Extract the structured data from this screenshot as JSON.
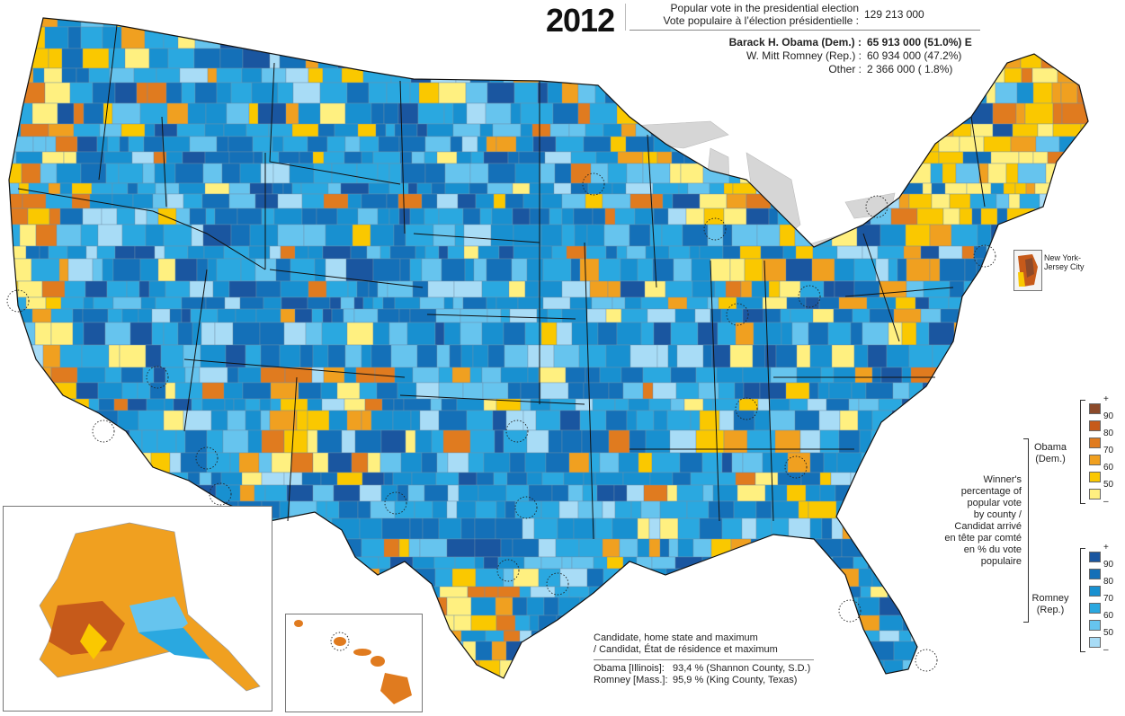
{
  "header": {
    "year": "2012",
    "popular_vote_en": "Popular vote in the presidential election",
    "popular_vote_fr": "Vote populaire à l’élection présidentielle :",
    "total": "129 213 000"
  },
  "candidates": [
    {
      "name": "Barack H. Obama (Dem.) :",
      "value": "65 913 000  (51.0%)  E"
    },
    {
      "name": "W. Mitt Romney (Rep.) :",
      "value": "60 934 000  (47.2%)"
    },
    {
      "name": "Other :",
      "value": "2 366 000  (  1.8%)"
    }
  ],
  "inset_label": "New York-\nJersey City",
  "footer": {
    "title_en": "Candidate, home state and maximum",
    "title_fr": "/ Candidat, État de résidence et maximum",
    "records": [
      {
        "name": "Obama [Illinois]:",
        "value": "93,4 % (Shannon County, S.D.)"
      },
      {
        "name": "Romney [Mass.]:",
        "value": "95,9 % (King County, Texas)"
      }
    ]
  },
  "legend": {
    "winner_label": "Winner's\npercentage of\npopular vote\nby county /\nCandidat arrivé\nen tête par comté\nen % du vote\npopulaire",
    "obama_label": "Obama\n(Dem.)",
    "romney_label": "Romney\n(Rep.)",
    "obama_ticks": [
      "+",
      "90",
      "80",
      "70",
      "60",
      "50",
      "–"
    ],
    "romney_ticks": [
      "+",
      "90",
      "80",
      "70",
      "60",
      "50",
      "–"
    ],
    "obama_colors": [
      "#8c4a2a",
      "#c65a1a",
      "#e07b1f",
      "#f0a020",
      "#fac800",
      "#fff080"
    ],
    "romney_colors": [
      "#1a56a0",
      "#1470b8",
      "#1890d0",
      "#2aa8e0",
      "#66c4ee",
      "#a8dcf6"
    ]
  }
}
